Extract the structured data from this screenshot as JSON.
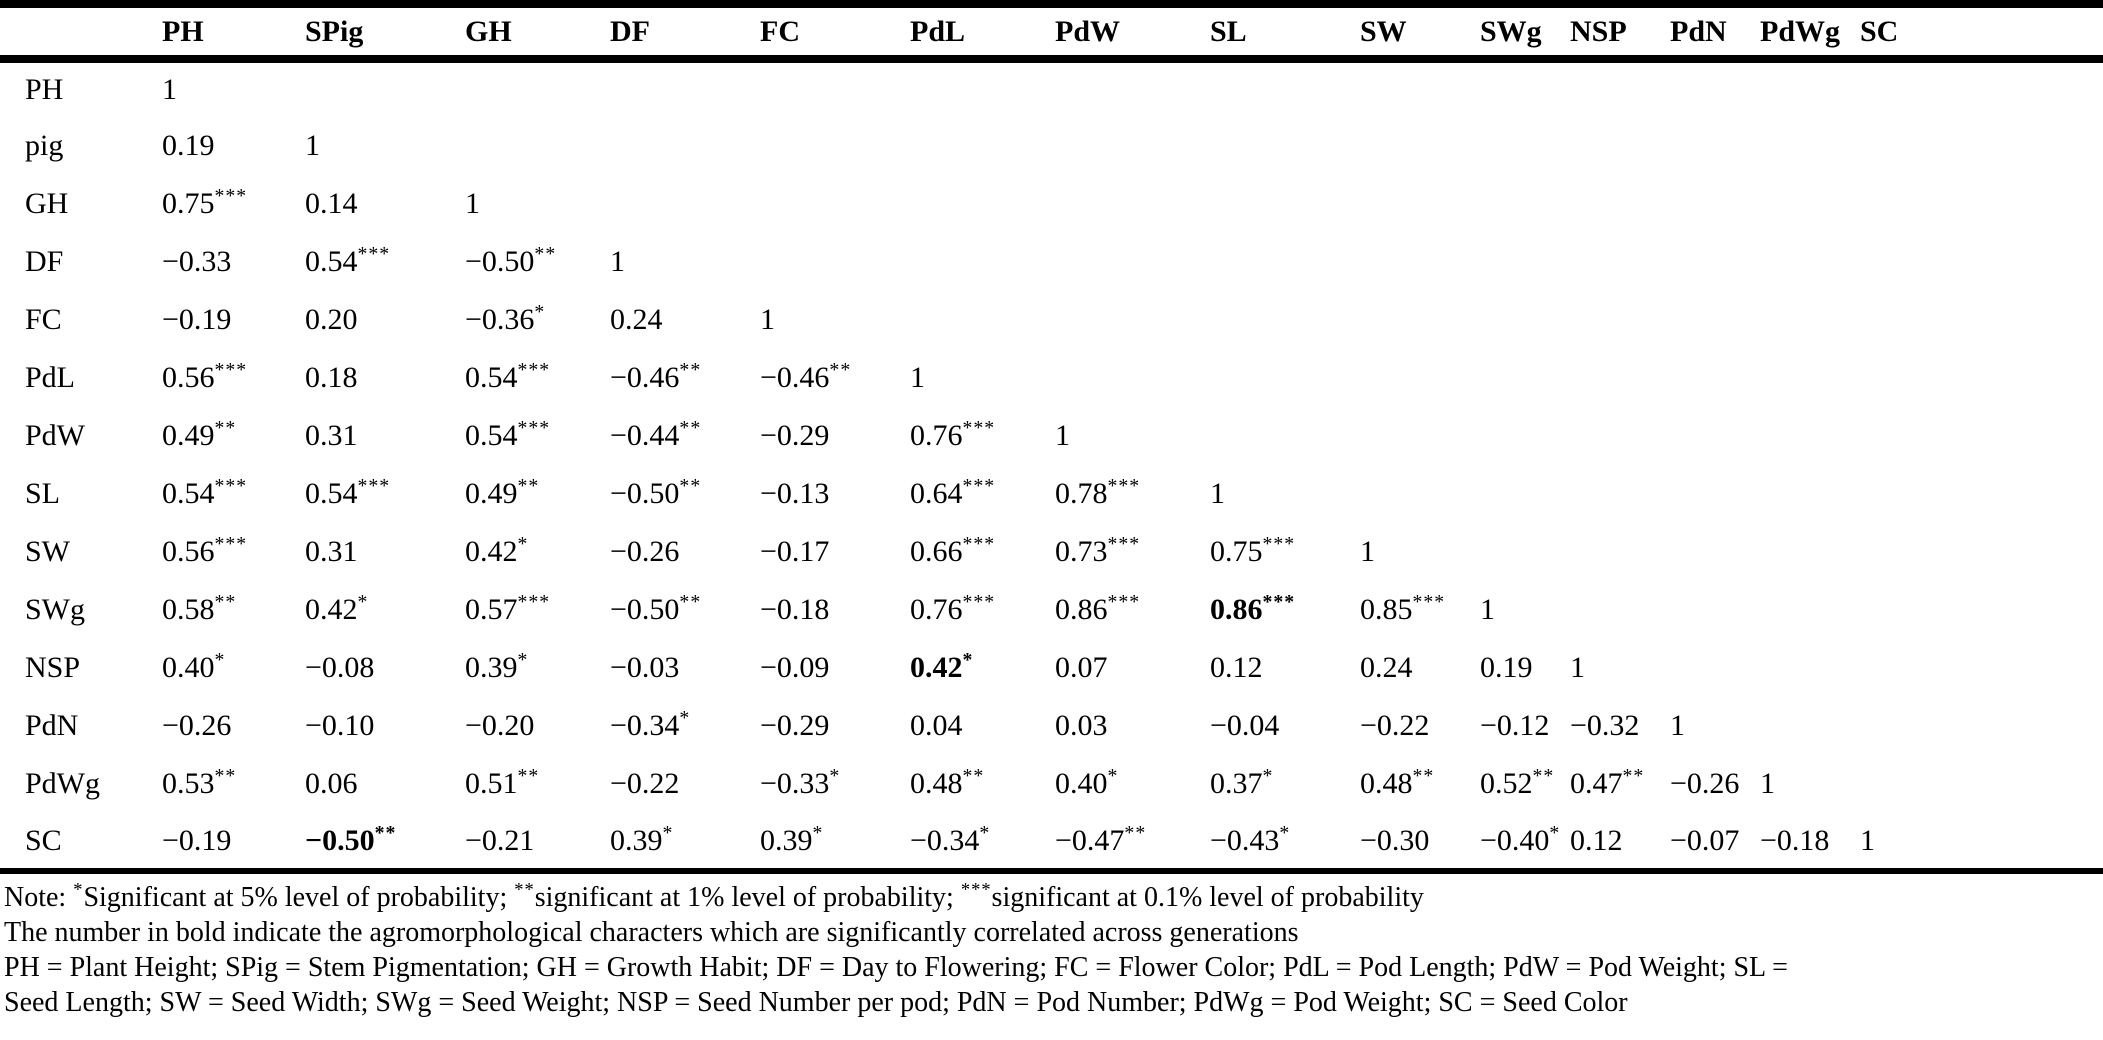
{
  "table": {
    "corner_label": "",
    "columns": [
      "PH",
      "SPig",
      "GH",
      "DF",
      "FC",
      "PdL",
      "PdW",
      "SL",
      "SW",
      "SWg",
      "NSP",
      "PdN",
      "PdWg",
      "SC"
    ],
    "rows": [
      {
        "label": "PH",
        "cells": [
          "1"
        ]
      },
      {
        "label": "pig",
        "cells": [
          "0.19",
          "1"
        ]
      },
      {
        "label": "GH",
        "cells": [
          "0.75***",
          "0.14",
          "1"
        ]
      },
      {
        "label": "DF",
        "cells": [
          "−0.33",
          "0.54***",
          "−0.50**",
          "1"
        ]
      },
      {
        "label": "FC",
        "cells": [
          "−0.19",
          "0.20",
          "−0.36*",
          "0.24",
          "1"
        ]
      },
      {
        "label": "PdL",
        "cells": [
          "0.56***",
          "0.18",
          "0.54***",
          "−0.46**",
          "−0.46**",
          "1"
        ]
      },
      {
        "label": "PdW",
        "cells": [
          "0.49**",
          "0.31",
          "0.54***",
          "−0.44**",
          "−0.29",
          "0.76***",
          "1"
        ]
      },
      {
        "label": "SL",
        "cells": [
          "0.54***",
          "0.54***",
          "0.49**",
          "−0.50**",
          "−0.13",
          "0.64***",
          "0.78***",
          "1"
        ]
      },
      {
        "label": "SW",
        "cells": [
          "0.56***",
          "0.31",
          "0.42*",
          "−0.26",
          "−0.17",
          "0.66***",
          "0.73***",
          "0.75***",
          "1"
        ]
      },
      {
        "label": "SWg",
        "cells": [
          "0.58**",
          "0.42*",
          "0.57***",
          "−0.50**",
          "−0.18",
          "0.76***",
          "0.86***",
          {
            "v": "0.86***",
            "bold": true
          },
          "0.85***",
          "1"
        ]
      },
      {
        "label": "NSP",
        "cells": [
          "0.40*",
          "−0.08",
          "0.39*",
          "−0.03",
          "−0.09",
          {
            "v": "0.42*",
            "bold": true
          },
          "0.07",
          "0.12",
          "0.24",
          "0.19",
          "1"
        ]
      },
      {
        "label": "PdN",
        "cells": [
          "−0.26",
          "−0.10",
          "−0.20",
          "−0.34*",
          "−0.29",
          "0.04",
          "0.03",
          "−0.04",
          "−0.22",
          "−0.12",
          "−0.32",
          "1"
        ]
      },
      {
        "label": "PdWg",
        "cells": [
          "0.53**",
          "0.06",
          "0.51**",
          "−0.22",
          "−0.33*",
          "0.48**",
          "0.40*",
          "0.37*",
          "0.48**",
          "0.52**",
          "0.47**",
          "−0.26",
          "1"
        ]
      },
      {
        "label": "SC",
        "cells": [
          "−0.19",
          {
            "v": "−0.50**",
            "bold": true
          },
          "−0.21",
          "0.39*",
          "0.39*",
          "−0.34*",
          "−0.47**",
          "−0.43*",
          "−0.30",
          "−0.40*",
          "0.12",
          "−0.07",
          "−0.18",
          "1"
        ]
      }
    ]
  },
  "notes": {
    "significance": "Note: *Significant at 5% level of probability; **significant at 1% level of probability; ***significant at 0.1% level of probability",
    "bold_meaning": "The number in bold indicate the agromorphological characters which are significantly correlated across generations",
    "abbreviations_line1": "PH = Plant Height; SPig = Stem Pigmentation; GH = Growth Habit; DF = Day to Flowering; FC = Flower Color; PdL = Pod Length; PdW = Pod Weight; SL =",
    "abbreviations_line2": "Seed Length; SW = Seed Width; SWg = Seed Weight; NSP = Seed Number per pod; PdN = Pod Number; PdWg = Pod Weight; SC = Seed Color"
  },
  "colors": {
    "text": "#000000",
    "background": "#ffffff",
    "rule": "#000000"
  }
}
